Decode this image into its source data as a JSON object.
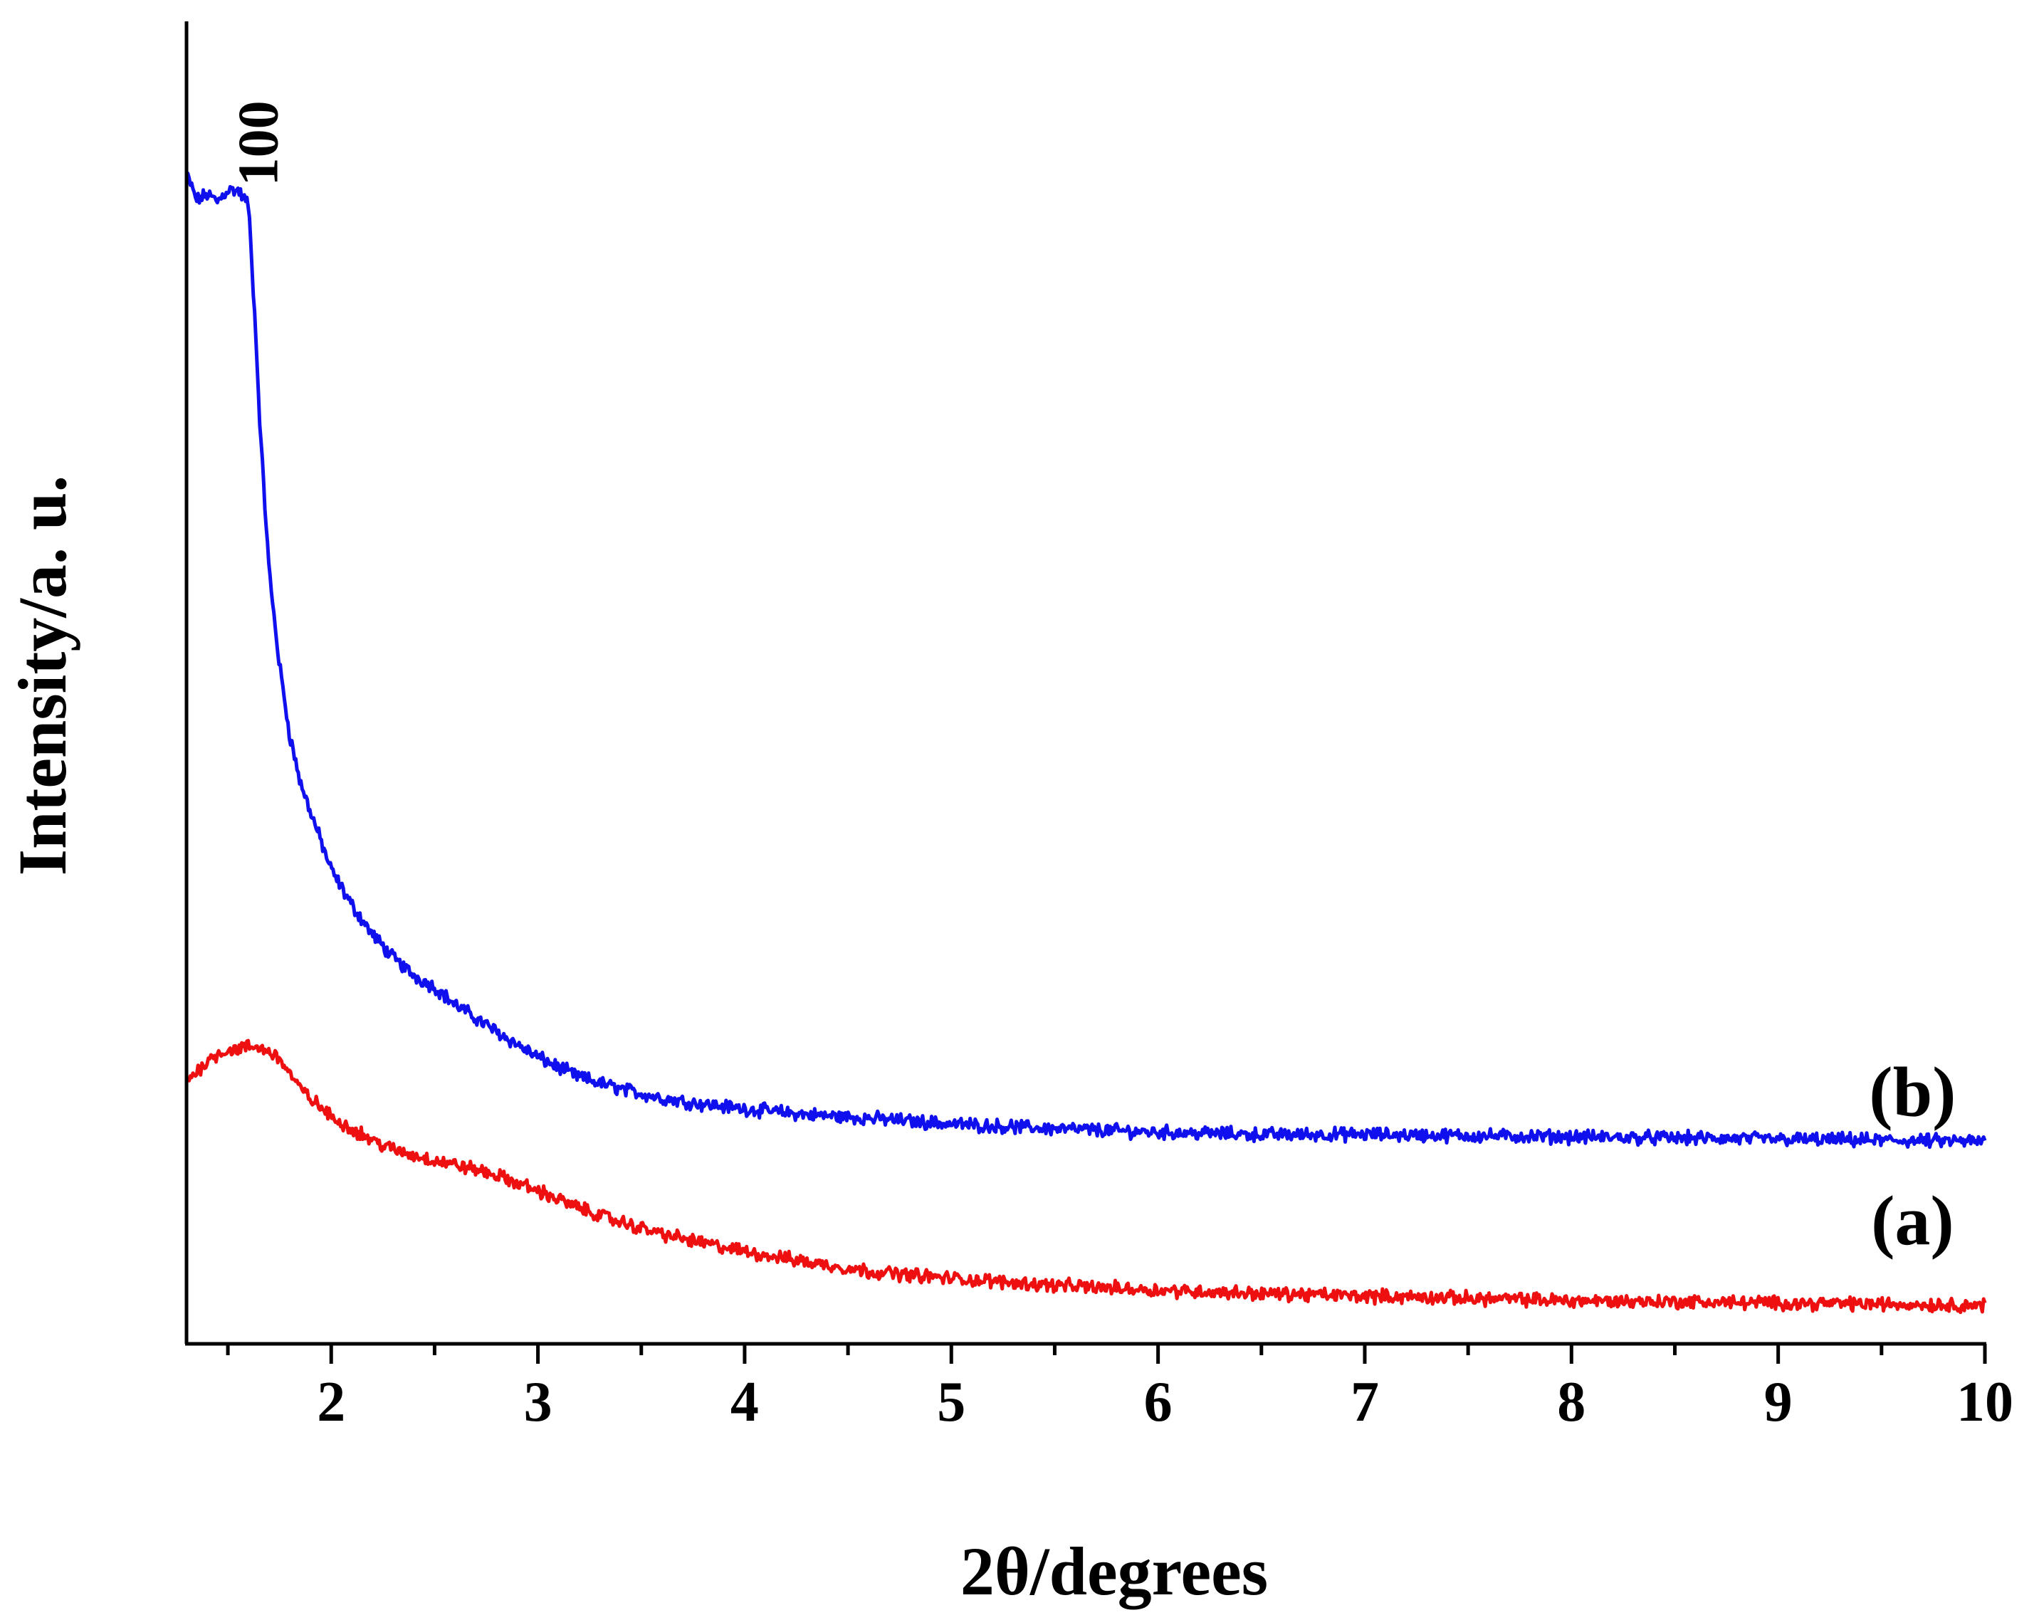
{
  "chart_data": {
    "type": "line",
    "title": "",
    "xlabel": "2θ/degrees",
    "ylabel": "Intensity/a. u.",
    "xlim": [
      1.3,
      10
    ],
    "x_ticks_major": [
      "2",
      "3",
      "4",
      "5",
      "6",
      "7",
      "8",
      "9",
      "10"
    ],
    "x_ticks_minor": [
      1.5,
      2.5,
      3.5,
      4.5,
      5.5,
      6.5,
      7.5,
      8.5,
      9.5
    ],
    "y_ticks_shown": false,
    "ylim": [
      0,
      100
    ],
    "grid": false,
    "annotations": [
      {
        "text": "100",
        "x": 1.55,
        "y": 99,
        "rotation": -90
      },
      {
        "text": "(b)",
        "series": "(b)",
        "x": 9.65,
        "y": 19.5
      },
      {
        "text": "(a)",
        "series": "(a)",
        "x": 9.65,
        "y": 8.5
      }
    ],
    "series": [
      {
        "name": "(b)",
        "color": "#1010ee",
        "x": [
          1.3,
          1.35,
          1.4,
          1.45,
          1.5,
          1.55,
          1.6,
          1.63,
          1.66,
          1.7,
          1.75,
          1.8,
          1.85,
          1.9,
          2.0,
          2.1,
          2.2,
          2.3,
          2.4,
          2.5,
          2.6,
          2.8,
          3.0,
          3.2,
          3.4,
          3.6,
          3.8,
          4.0,
          4.3,
          4.6,
          5.0,
          5.5,
          6.0,
          6.5,
          7.0,
          7.5,
          8.0,
          8.5,
          9.0,
          9.5,
          10.0
        ],
        "y": [
          100,
          97.8,
          98.3,
          97.7,
          98.7,
          98.6,
          97.4,
          88,
          77,
          66,
          58,
          52,
          48,
          45.5,
          40.5,
          37.5,
          35,
          33,
          31.5,
          30.5,
          29,
          26.7,
          24.5,
          22.8,
          21.8,
          21,
          20.5,
          20.1,
          19.6,
          19.3,
          18.8,
          18.4,
          18.1,
          17.9,
          17.9,
          17.8,
          17.7,
          17.6,
          17.5,
          17.4,
          17.3
        ]
      },
      {
        "name": "(a)",
        "color": "#ee1010",
        "x": [
          1.3,
          1.35,
          1.4,
          1.45,
          1.5,
          1.55,
          1.6,
          1.65,
          1.7,
          1.75,
          1.8,
          1.85,
          1.9,
          2.0,
          2.1,
          2.2,
          2.3,
          2.4,
          2.5,
          2.6,
          2.7,
          2.8,
          3.0,
          3.2,
          3.4,
          3.6,
          3.8,
          4.0,
          4.3,
          4.6,
          5.0,
          5.5,
          6.0,
          6.5,
          7.0,
          7.5,
          8.0,
          8.5,
          9.0,
          9.5,
          10.0
        ],
        "y": [
          22.5,
          23.3,
          24.2,
          24.8,
          25.1,
          25.2,
          25.4,
          25.3,
          25.0,
          24.4,
          23.1,
          21.8,
          21.0,
          19.4,
          18.4,
          17.4,
          16.6,
          16.1,
          15.7,
          15.3,
          14.9,
          14.4,
          13.1,
          11.6,
          10.4,
          9.4,
          8.6,
          7.9,
          7.0,
          6.2,
          5.6,
          5.0,
          4.6,
          4.3,
          4.1,
          3.9,
          3.7,
          3.6,
          3.5,
          3.4,
          3.3
        ]
      }
    ]
  }
}
